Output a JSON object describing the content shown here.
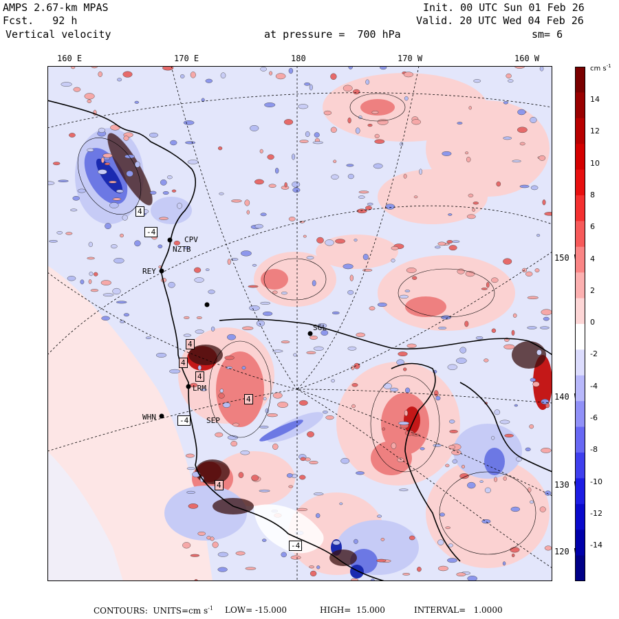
{
  "header": {
    "model": "AMPS 2.67-km MPAS",
    "forecast": "Fcst.   92 h",
    "field": "Vertical velocity",
    "init": "Init. 00 UTC Sun 01 Feb 26",
    "valid": "Valid. 20 UTC Wed 04 Feb 26",
    "pressure": "at pressure =  700 hPa",
    "smoothing": "sm= 6"
  },
  "longitude_labels": [
    "160 E",
    "170 E",
    "180",
    "170 W",
    "160 W"
  ],
  "latitude_labels": [
    "150 W",
    "140 W",
    "130 W",
    "120 W"
  ],
  "stations": [
    "CPV",
    "NZTB",
    "REY",
    "SGL",
    "LRM",
    "WHN",
    "SEP"
  ],
  "contour_numbers": [
    "4",
    "-4",
    "4",
    "4",
    "4",
    "-4",
    "4",
    "4",
    "-4"
  ],
  "colorbar": {
    "units": "cm s",
    "units_exp": "-1",
    "ticks": [
      "14",
      "12",
      "10",
      "8",
      "6",
      "4",
      "2",
      "0",
      "-2",
      "-4",
      "-6",
      "-8",
      "-10",
      "-12",
      "-14"
    ],
    "colors": [
      "#7a0000",
      "#990000",
      "#b80000",
      "#d40000",
      "#e81010",
      "#f43030",
      "#f75a5a",
      "#fa8585",
      "#fcb0b0",
      "#fdd6d6",
      "#ffffff",
      "#dcdcfd",
      "#b8b8fb",
      "#9191f8",
      "#6868f4",
      "#3f3fee",
      "#1d1de4",
      "#0a0acc",
      "#0000aa",
      "#000088"
    ]
  },
  "footer": {
    "contours": "CONTOURS:  UNITS=cm s",
    "units_exp": "-1",
    "low": "LOW= -15.000",
    "high": "HIGH=  15.000",
    "interval": "INTERVAL=   1.0000"
  },
  "map_colors": {
    "background": "#e3e6fb",
    "ocean_pale": "#fde6e6",
    "pos_light": "#f8b4b4",
    "pos_mid": "#ee6a6a",
    "pos_dark": "#b01010",
    "neg_light": "#c6cbf6",
    "neg_mid": "#7a86ea",
    "neg_dark": "#1c2bb8"
  }
}
